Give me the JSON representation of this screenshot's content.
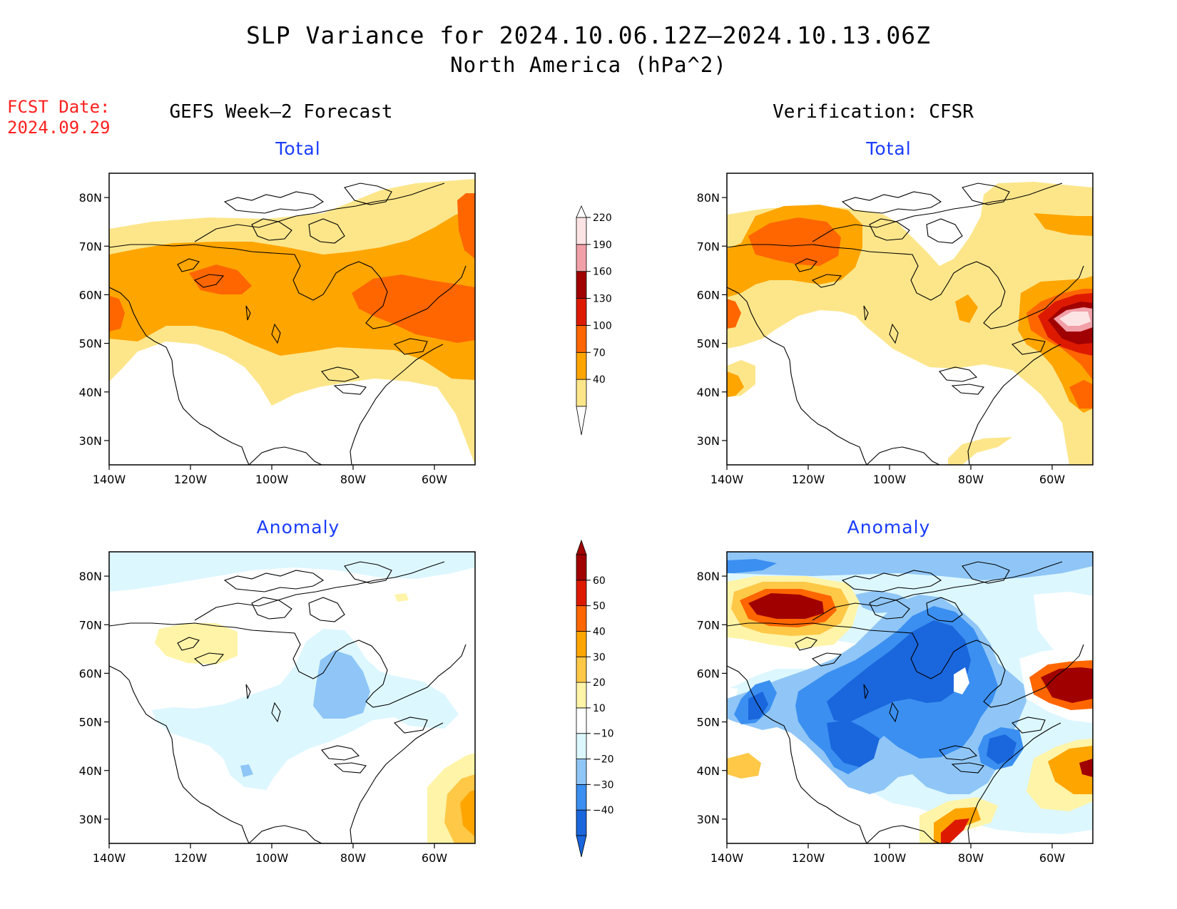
{
  "header": {
    "title": "SLP Variance for 2024.10.06.12Z–2024.10.13.06Z",
    "subtitle": "North America (hPa^2)",
    "fcst_label": "FCST Date:",
    "fcst_date": "2024.09.29"
  },
  "columns": {
    "left": "GEFS Week–2 Forecast",
    "right": "Verification: CFSR"
  },
  "axes": {
    "lat_labels": [
      "80N",
      "70N",
      "60N",
      "50N",
      "40N",
      "30N"
    ],
    "lat_values": [
      80,
      70,
      60,
      50,
      40,
      30
    ],
    "lon_labels": [
      "140W",
      "120W",
      "100W",
      "80W",
      "60W"
    ],
    "lon_values": [
      -140,
      -120,
      -100,
      -80,
      -60
    ],
    "lat_range": [
      25,
      85
    ],
    "lon_range": [
      -140,
      -50
    ]
  },
  "panels": [
    {
      "id": "gefs-total",
      "title": "Total",
      "field": "total"
    },
    {
      "id": "cfsr-total",
      "title": "Total",
      "field": "total"
    },
    {
      "id": "gefs-anomaly",
      "title": "Anomaly",
      "field": "anomaly"
    },
    {
      "id": "cfsr-anomaly",
      "title": "Anomaly",
      "field": "anomaly"
    }
  ],
  "colorbars": {
    "total": {
      "labels": [
        "40",
        "70",
        "100",
        "130",
        "160",
        "190",
        "220"
      ],
      "colors": [
        "#fde68a",
        "#ffa500",
        "#ff6600",
        "#dd1a00",
        "#a00000",
        "#f2a0a8",
        "#fde4e4"
      ]
    },
    "anomaly": {
      "labels": [
        "−40",
        "−30",
        "−20",
        "−10",
        "10",
        "20",
        "30",
        "40",
        "50",
        "60"
      ],
      "colors": [
        "#1a66dd",
        "#3b8ff0",
        "#8fc6f7",
        "#ddf7ff",
        "#ffffff",
        "#fff4a8",
        "#ffc847",
        "#ffa500",
        "#ff6600",
        "#dd1a00",
        "#a00000"
      ]
    }
  }
}
